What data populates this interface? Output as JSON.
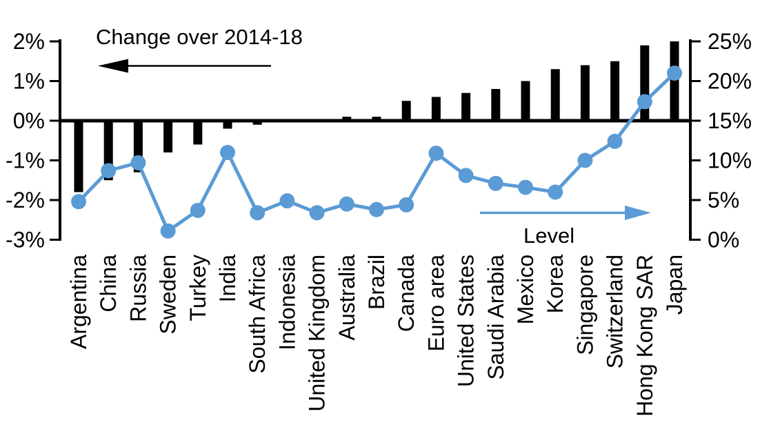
{
  "chart_data": {
    "type": "combo",
    "title": "Change over 2014-18",
    "categories": [
      "Argentina",
      "China",
      "Russia",
      "Sweden",
      "Turkey",
      "India",
      "South Africa",
      "Indonesia",
      "United Kingdom",
      "Australia",
      "Brazil",
      "Canada",
      "Euro area",
      "United States",
      "Saudi Arabia",
      "Mexico",
      "Korea",
      "Singapore",
      "Switzerland",
      "Hong Kong SAR",
      "Japan"
    ],
    "series": [
      {
        "name": "Change over 2014-18",
        "type": "bar",
        "axis": "left",
        "color": "#000000",
        "values": [
          -1.8,
          -1.5,
          -1.3,
          -0.8,
          -0.6,
          -0.2,
          -0.1,
          0,
          0,
          0.1,
          0.1,
          0.5,
          0.6,
          0.7,
          0.8,
          1.0,
          1.3,
          1.4,
          1.5,
          1.9,
          2.0
        ]
      },
      {
        "name": "Level",
        "type": "line",
        "axis": "right",
        "color": "#5b9bd5",
        "values": [
          4.8,
          8.7,
          9.7,
          1.1,
          3.7,
          11.0,
          3.4,
          4.9,
          3.4,
          4.5,
          3.8,
          4.4,
          10.9,
          8.1,
          7.1,
          6.6,
          6.0,
          10.0,
          12.4,
          17.4,
          21.0
        ]
      }
    ],
    "left_axis": {
      "min": -3,
      "max": 2,
      "tick_step": 1,
      "tick_labels": [
        "2%",
        "1%",
        "0%",
        "-1%",
        "-2%",
        "-3%"
      ]
    },
    "right_axis": {
      "min": 0,
      "max": 25,
      "tick_step": 5,
      "tick_labels": [
        "25%",
        "20%",
        "15%",
        "10%",
        "5%",
        "0%"
      ]
    },
    "annotations": [
      {
        "text": "Change over 2014-18",
        "arrow": "left",
        "color": "#000000"
      },
      {
        "text": "Level",
        "arrow": "right",
        "color": "#5b9bd5"
      }
    ],
    "grid": false,
    "legend_position": "none"
  }
}
